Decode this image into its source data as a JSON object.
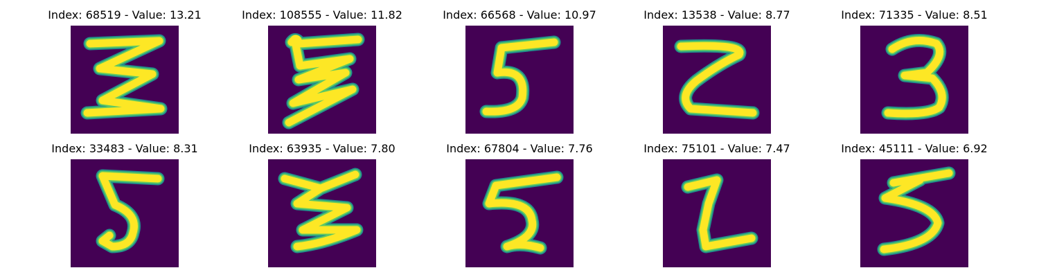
{
  "colors": {
    "background": "#440154",
    "stroke_edge": "#21918c",
    "stroke_mid": "#5ec962",
    "stroke_core": "#fde725"
  },
  "panels": [
    {
      "title": "Index: 68519 - Value: 13.21",
      "glyph_name": "digit-3-sample-icon"
    },
    {
      "title": "Index: 108555 - Value: 11.82",
      "glyph_name": "digit-3-sample-icon"
    },
    {
      "title": "Index: 66568 - Value: 10.97",
      "glyph_name": "digit-5-sample-icon"
    },
    {
      "title": "Index: 13538 - Value: 8.77",
      "glyph_name": "digit-2-sample-icon"
    },
    {
      "title": "Index: 71335 - Value: 8.51",
      "glyph_name": "digit-3-sample-icon"
    },
    {
      "title": "Index: 33483 - Value: 8.31",
      "glyph_name": "digit-5-sample-icon"
    },
    {
      "title": "Index: 63935 - Value: 7.80",
      "glyph_name": "digit-3-sample-icon"
    },
    {
      "title": "Index: 67804 - Value: 7.76",
      "glyph_name": "digit-5-sample-icon"
    },
    {
      "title": "Index: 75101 - Value: 7.47",
      "glyph_name": "digit-2-sample-icon"
    },
    {
      "title": "Index: 45111 - Value: 6.92",
      "glyph_name": "digit-3-sample-icon"
    }
  ]
}
